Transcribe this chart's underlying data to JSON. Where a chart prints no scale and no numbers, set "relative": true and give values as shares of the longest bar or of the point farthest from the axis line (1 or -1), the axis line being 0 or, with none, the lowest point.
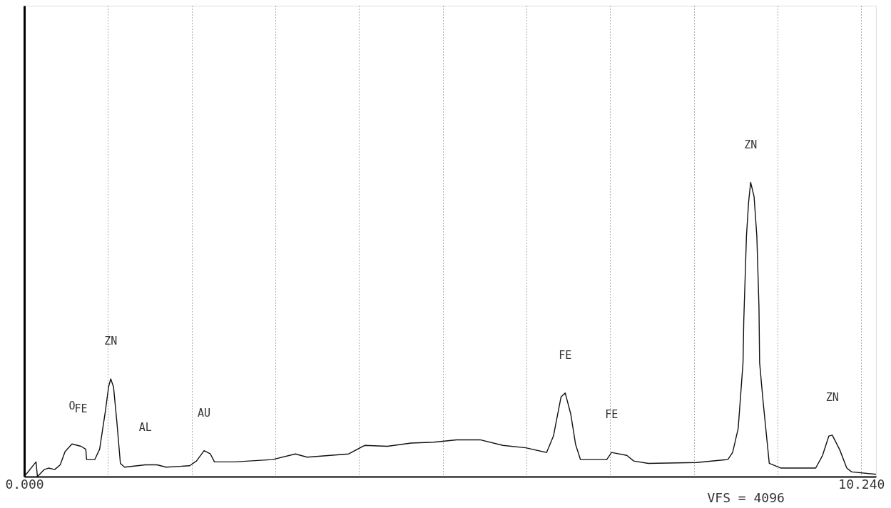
{
  "chart_data": {
    "type": "line",
    "relative": true,
    "grid": "x",
    "line_style": "solid",
    "marker": "none",
    "xlim": [
      0,
      10.42
    ],
    "xticks": [
      {
        "value": 0,
        "label": "0.000"
      },
      {
        "value": 1.024,
        "label": null
      },
      {
        "value": 2.048,
        "label": null
      },
      {
        "value": 3.072,
        "label": null
      },
      {
        "value": 4.096,
        "label": null
      },
      {
        "value": 5.12,
        "label": null
      },
      {
        "value": 6.144,
        "label": null
      },
      {
        "value": 7.168,
        "label": null
      },
      {
        "value": 8.192,
        "label": null
      },
      {
        "value": 9.216,
        "label": null
      },
      {
        "value": 10.24,
        "label": "10.240"
      }
    ],
    "x": [
      0,
      0.144,
      0.161,
      0.245,
      0.296,
      0.372,
      0.44,
      0.499,
      0.584,
      0.694,
      0.753,
      0.762,
      0.863,
      0.922,
      0.99,
      1.032,
      1.058,
      1.092,
      1.134,
      1.176,
      1.227,
      1.481,
      1.625,
      1.735,
      2.023,
      2.107,
      2.2,
      2.277,
      2.327,
      2.581,
      2.75,
      3.038,
      3.317,
      3.461,
      3.969,
      4.164,
      4.443,
      4.731,
      5.01,
      5.289,
      5.577,
      5.856,
      6.136,
      6.39,
      6.474,
      6.567,
      6.618,
      6.686,
      6.745,
      6.804,
      7.126,
      7.185,
      7.371,
      7.456,
      7.634,
      8.226,
      8.607,
      8.666,
      8.734,
      8.793,
      8.802,
      8.835,
      8.861,
      8.886,
      8.928,
      8.962,
      8.988,
      8.996,
      9.038,
      9.114,
      9.258,
      9.682,
      9.766,
      9.843,
      9.885,
      9.978,
      10.062,
      10.121,
      10.42
    ],
    "series": [
      {
        "color": "#111111",
        "values": [
          0,
          0.05,
          0,
          0.024,
          0.029,
          0.024,
          0.04,
          0.085,
          0.111,
          0.103,
          0.093,
          0.058,
          0.058,
          0.093,
          0.218,
          0.305,
          0.332,
          0.305,
          0.183,
          0.045,
          0.032,
          0.04,
          0.04,
          0.032,
          0.037,
          0.053,
          0.088,
          0.077,
          0.05,
          0.05,
          0.053,
          0.058,
          0.077,
          0.066,
          0.077,
          0.106,
          0.103,
          0.114,
          0.117,
          0.125,
          0.125,
          0.106,
          0.098,
          0.082,
          0.138,
          0.271,
          0.284,
          0.212,
          0.109,
          0.058,
          0.058,
          0.082,
          0.072,
          0.053,
          0.045,
          0.048,
          0.058,
          0.082,
          0.164,
          0.387,
          0.528,
          0.817,
          0.931,
          1.0,
          0.952,
          0.817,
          0.578,
          0.387,
          0.257,
          0.045,
          0.029,
          0.029,
          0.072,
          0.138,
          0.141,
          0.09,
          0.029,
          0.016,
          0.008
        ]
      }
    ],
    "annotations": [
      {
        "text": "ZN",
        "x": 1.058,
        "y": 0.332
      },
      {
        "text": "O",
        "x": 0.584,
        "y": 0.111
      },
      {
        "text": "FE",
        "x": 0.694,
        "y": 0.103
      },
      {
        "text": "AL",
        "x": 1.481,
        "y": 0.04
      },
      {
        "text": "AU",
        "x": 2.2,
        "y": 0.088
      },
      {
        "text": "FE",
        "x": 6.618,
        "y": 0.284
      },
      {
        "text": "FE",
        "x": 7.185,
        "y": 0.082
      },
      {
        "text": "ZN",
        "x": 8.886,
        "y": 1.0
      },
      {
        "text": "ZN",
        "x": 9.885,
        "y": 0.141
      },
      "VFS = 4096"
    ]
  }
}
